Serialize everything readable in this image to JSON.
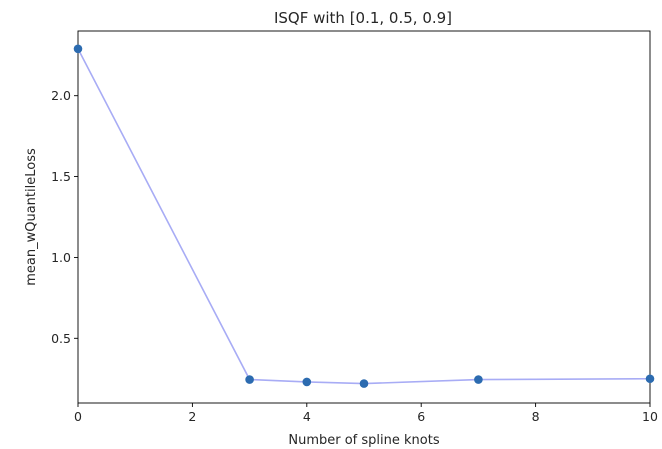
{
  "chart_data": {
    "type": "scatter",
    "title": "ISQF with [0.1, 0.5, 0.9]",
    "xlabel": "Number of spline knots",
    "ylabel": "mean_wQuantileLoss",
    "xlim": [
      0,
      10
    ],
    "ylim": [
      0.1,
      2.4
    ],
    "xticks": [
      0,
      2,
      4,
      6,
      8,
      10
    ],
    "yticks": [
      0.5,
      1.0,
      1.5,
      2.0
    ],
    "ytick_labels": [
      "0.5",
      "1.0",
      "1.5",
      "2.0"
    ],
    "grid": false,
    "series": [
      {
        "x": [
          0,
          3,
          4,
          5,
          7,
          10
        ],
        "y": [
          2.29,
          0.245,
          0.23,
          0.22,
          0.245,
          0.25
        ],
        "marker_color": "#2c6bb0",
        "line_color": "#a8acf5"
      }
    ]
  }
}
